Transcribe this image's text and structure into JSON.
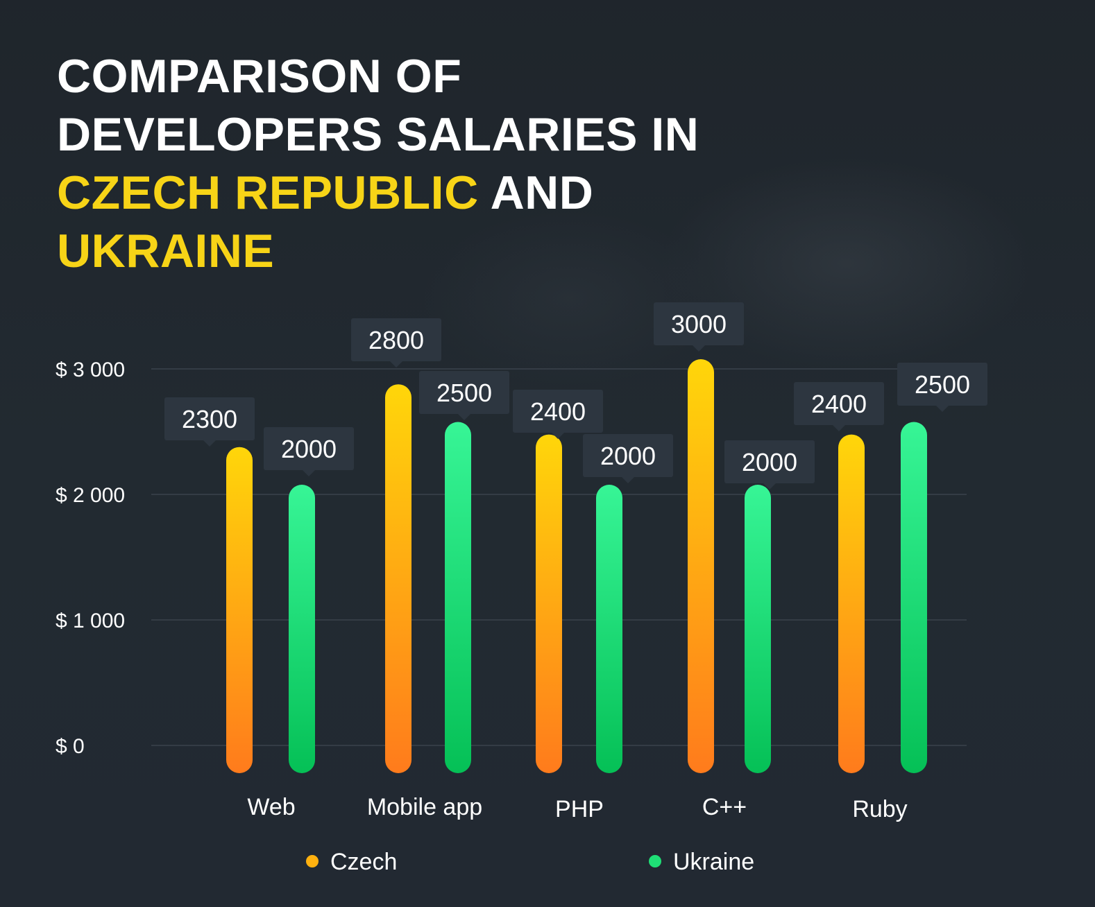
{
  "title": {
    "line1": "COMPARISON OF",
    "line2": "DEVELOPERS SALARIES IN",
    "highlight_1": "CZECH REPUBLIC",
    "connector": "AND",
    "highlight_2": "UKRAINE"
  },
  "colors": {
    "background": "#222931",
    "czech_top": "#ffd60a",
    "czech_bottom": "#ff7b1c",
    "ukraine_top": "#37f596",
    "ukraine_bottom": "#05c056",
    "highlight_text": "#f7d417",
    "label_box": "#2d3640"
  },
  "chart_data": {
    "type": "bar",
    "categories": [
      "Web",
      "Mobile app",
      "PHP",
      "C++",
      "Ruby"
    ],
    "series": [
      {
        "name": "Czech",
        "values": [
          2300,
          2800,
          2400,
          3000,
          2400
        ]
      },
      {
        "name": "Ukraine",
        "values": [
          2000,
          2500,
          2000,
          2000,
          2500
        ]
      }
    ],
    "value_labels": [
      [
        "2300",
        "2800",
        "2400",
        "3000",
        "2400"
      ],
      [
        "2000",
        "2500",
        "2000",
        "2000",
        "2500"
      ]
    ],
    "ylim": [
      0,
      3000
    ],
    "yticks": [
      0,
      1000,
      2000,
      3000
    ],
    "ytick_labels": [
      "$ 0",
      "$ 1 000",
      "$ 2 000",
      "$ 3 000"
    ],
    "grid": true,
    "legend": {
      "position": "bottom",
      "entries": [
        "Czech",
        "Ukraine"
      ]
    }
  }
}
